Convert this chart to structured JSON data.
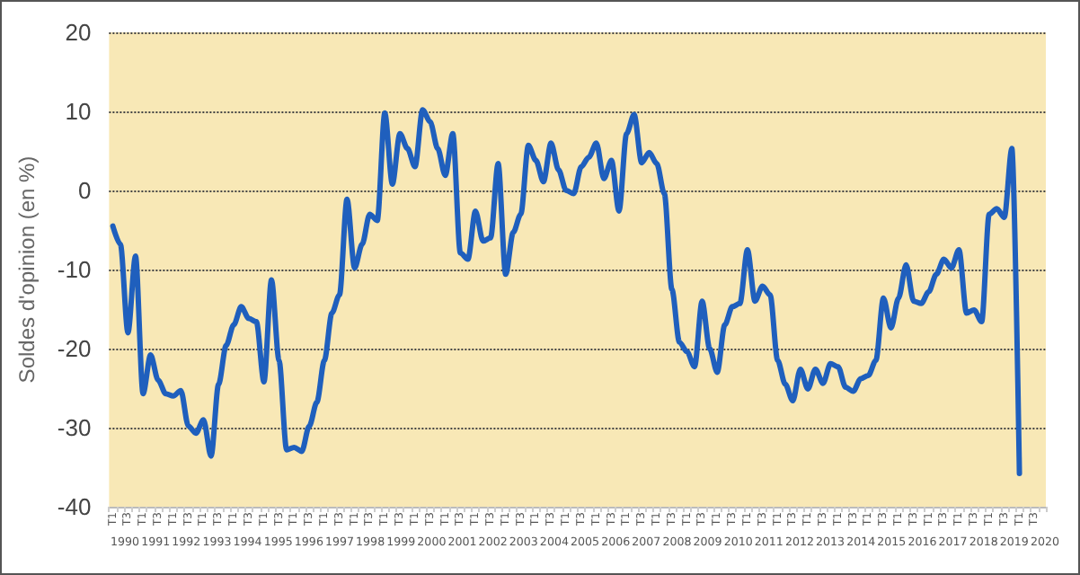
{
  "chart_data": {
    "type": "line",
    "ylabel": "Soldes d'opinion (en %)",
    "categories": [
      "T1",
      null,
      "T3",
      null,
      "T1",
      null,
      "T3",
      null,
      "T1",
      null,
      "T3",
      null,
      "T1",
      null,
      "T3",
      null,
      "T1",
      null,
      "T3",
      null,
      "T1",
      null,
      "T3",
      null,
      "T1",
      null,
      "T3",
      null,
      "T1",
      null,
      "T3",
      null,
      "T1",
      null,
      "T3",
      null,
      "T1",
      null,
      "T3",
      null,
      "T1",
      null,
      "T3",
      null,
      "T1",
      null,
      "T3",
      null,
      "T1",
      null,
      "T3",
      null,
      "T1",
      null,
      "T3",
      null,
      "T1",
      null,
      "T3",
      null,
      "T1",
      null,
      "T3",
      null,
      "T1",
      null,
      "T3",
      null,
      "T1",
      null,
      "T3",
      null,
      "T1",
      null,
      "T3",
      null,
      "T1",
      null,
      "T3",
      null,
      "T1",
      null,
      "T3",
      null,
      "T1",
      null,
      "T3",
      null,
      "T1",
      null,
      "T3",
      null,
      "T1",
      null,
      "T3",
      null,
      "T1",
      null,
      "T3",
      null,
      "T1",
      null,
      "T3",
      null,
      "T1",
      null,
      "T3",
      null,
      "T1",
      null,
      "T3",
      null,
      "T1",
      null,
      "T3",
      null,
      "T1",
      null,
      "T3",
      null,
      "T1",
      null,
      "T3",
      null
    ],
    "series": [
      {
        "color": "#1f5fbd",
        "values": [
          -4.5,
          -6.8,
          -18,
          -8.3,
          -25.7,
          -20.8,
          -24,
          -25.7,
          -26,
          -25.3,
          -29.8,
          -30.7,
          -29,
          -33.6,
          -24.5,
          -19.6,
          -17,
          -14.7,
          -16.2,
          -16.6,
          -24.2,
          -11.3,
          -21.5,
          -32.8,
          -32.5,
          -33,
          -29.8,
          -26.8,
          -21.5,
          -15.5,
          -13.2,
          -1.1,
          -9.8,
          -6.8,
          -3,
          -3.8,
          9.8,
          0.8,
          7.2,
          5.3,
          3,
          10.2,
          8.7,
          5.3,
          1.9,
          7.2,
          -7.9,
          -8.7,
          -2.6,
          -6.4,
          -6,
          3.4,
          -10.6,
          -5.3,
          -3,
          5.7,
          3.8,
          1.1,
          6,
          2.6,
          0,
          -0.4,
          3,
          4.2,
          6,
          1.5,
          3.8,
          -2.6,
          7.2,
          9.6,
          3.5,
          4.8,
          3.4,
          -0.4,
          -12.5,
          -19.2,
          -20.4,
          -22.3,
          -14,
          -20,
          -23,
          -17,
          -14.7,
          -14.3,
          -7.5,
          -14,
          -12.1,
          -13.2,
          -21.5,
          -24.5,
          -26.6,
          -22.6,
          -25.1,
          -22.6,
          -24.4,
          -21.9,
          -22.3,
          -24.9,
          -25.4,
          -23.8,
          -23.4,
          -21.5,
          -13.6,
          -17.4,
          -13.6,
          -9.4,
          -14,
          -14.3,
          -12.8,
          -10.6,
          -8.7,
          -9.8,
          -7.5,
          -15.5,
          -15.1,
          -16.6,
          -3,
          -2.3,
          -3.4,
          5.3,
          -35.8,
          null,
          null,
          null
        ]
      }
    ],
    "ylim": [
      -40,
      20
    ],
    "yticks": [
      -40,
      -30,
      -20,
      -10,
      0,
      10,
      20
    ],
    "annotations": [
      "1990",
      "1991",
      "1992",
      "1993",
      "1994",
      "1995",
      "1996",
      "1997",
      "1998",
      "1999",
      "2000",
      "2001",
      "2002",
      "2003",
      "2004",
      "2005",
      "2006",
      "2007",
      "2008",
      "2009",
      "2010",
      "2011",
      "2012",
      "2013",
      "2014",
      "2015",
      "2016",
      "2017",
      "2018",
      "2019",
      "2020"
    ],
    "grid": "y",
    "marker": "none",
    "line_style": "solid"
  }
}
